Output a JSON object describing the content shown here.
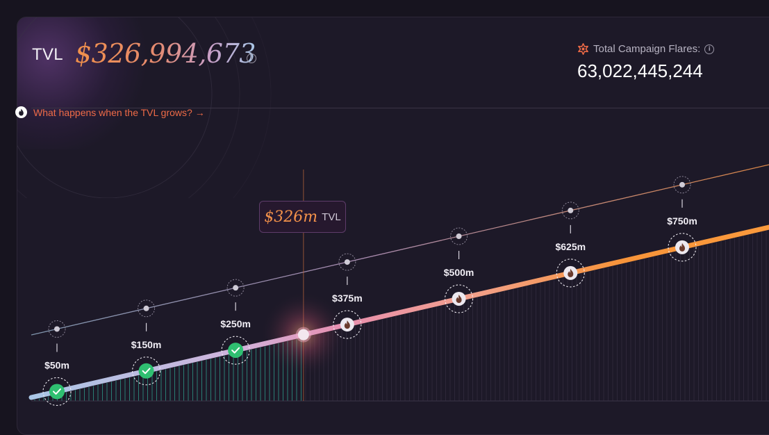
{
  "header": {
    "tvl_label": "TVL",
    "tvl_value": "$326,994,673",
    "flares_label": "Total Campaign Flares:",
    "flares_value": "63,022,445,244"
  },
  "link": {
    "text": "What happens when the TVL grows? →"
  },
  "tooltip": {
    "value": "$326m",
    "unit": "TVL"
  },
  "colors": {
    "accent_orange": "#ef6b47",
    "line_blue": "#a9c6e6",
    "line_pink": "#e58ab0",
    "line_orange": "#f7943a",
    "check_green": "#2fbf71"
  },
  "chart_data": {
    "type": "line",
    "current_tvl_m": 326,
    "milestones": [
      {
        "label": "$50m",
        "value_m": 50,
        "status": "achieved",
        "icon": "check-icon"
      },
      {
        "label": "$150m",
        "value_m": 150,
        "status": "achieved",
        "icon": "check-icon"
      },
      {
        "label": "$250m",
        "value_m": 250,
        "status": "achieved",
        "icon": "check-icon"
      },
      {
        "label": "$375m",
        "value_m": 375,
        "status": "upcoming",
        "icon": "flame-icon"
      },
      {
        "label": "$500m",
        "value_m": 500,
        "status": "upcoming",
        "icon": "flame-icon"
      },
      {
        "label": "$625m",
        "value_m": 625,
        "status": "upcoming",
        "icon": "flame-icon"
      },
      {
        "label": "$750m",
        "value_m": 750,
        "status": "upcoming",
        "icon": "flame-icon"
      }
    ]
  }
}
